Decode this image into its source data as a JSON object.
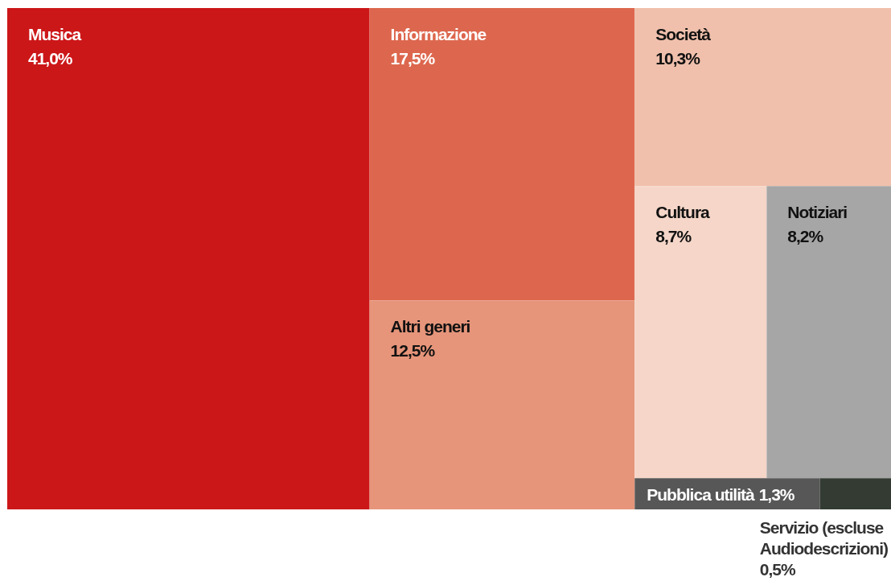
{
  "chart_data": {
    "type": "other",
    "categories": [
      "Musica",
      "Informazione",
      "Altri generi",
      "Società",
      "Cultura",
      "Notiziari",
      "Pubblica utilità",
      "Servizio (escluse Audiodescrizioni)"
    ],
    "values": [
      41.0,
      17.5,
      12.5,
      10.3,
      8.7,
      8.2,
      1.3,
      0.5
    ],
    "value_labels": [
      "41,0%",
      "17,5%",
      "12,5%",
      "10,3%",
      "8,7%",
      "8,2%",
      "1,3%",
      "0,5%"
    ],
    "colors": [
      "#cc1719",
      "#dd674e",
      "#e6957a",
      "#f0c0ac",
      "#f5d6c8",
      "#a6a6a6",
      "#575757",
      "#333b33"
    ]
  }
}
